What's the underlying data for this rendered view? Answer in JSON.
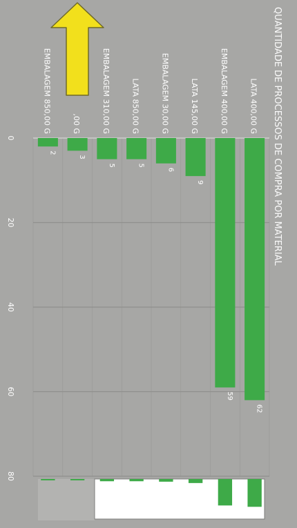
{
  "chart_data": {
    "type": "bar",
    "orientation": "rotated-90-clockwise",
    "title": "QUANTIDADE DE PROCESSOS DE COMPRA POR MATERIAL",
    "categories": [
      "LATA 400,00 G",
      "EMBALAGEM 400,00 G",
      "LATA 145,00 G",
      "EMBALAGEM 30,00 G",
      "LATA 850,00 G",
      "EMBALAGEM 310,00 G",
      ",00 G",
      "EMBALAGEM 850,00 G"
    ],
    "values": [
      62,
      59,
      9,
      6,
      5,
      5,
      3,
      2
    ],
    "data_labels": [
      "62",
      "59",
      "9",
      "6",
      "5",
      "5",
      "3",
      "2"
    ],
    "ticks": [
      "0",
      "20",
      "40",
      "60",
      "80"
    ],
    "ylim": [
      0,
      80
    ],
    "grid": true,
    "colors": {
      "bar": "#3eaa48",
      "background": "#a7a7a5",
      "grid": "#8f8f8d",
      "text": "#ffffff",
      "arrow": "#f2e01c",
      "arrow_outline": "#6f6a2a"
    },
    "overlay": {
      "type": "arrow",
      "direction": "up",
      "icon": "up-arrow-icon"
    }
  }
}
